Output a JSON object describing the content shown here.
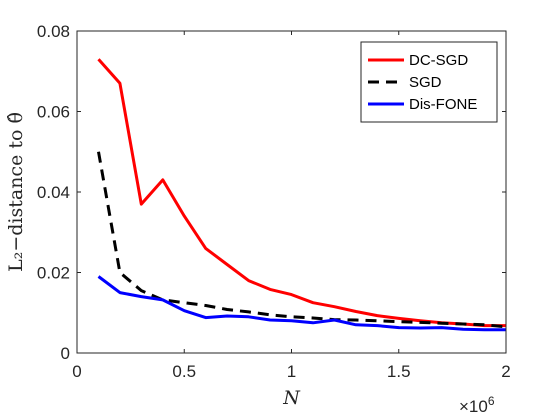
{
  "chart_data": {
    "type": "line",
    "title": "",
    "xlabel": "N",
    "ylabel": "L₂−distance to θ̂",
    "x_multiplier_label": "×10",
    "x_multiplier_exp": "6",
    "xlim": [
      0,
      2000000
    ],
    "ylim": [
      0,
      0.08
    ],
    "xticks": [
      0,
      500000,
      1000000,
      1500000,
      2000000
    ],
    "xtick_labels": [
      "0",
      "0.5",
      "1",
      "1.5",
      "2"
    ],
    "yticks": [
      0,
      0.02,
      0.04,
      0.06,
      0.08
    ],
    "ytick_labels": [
      "0",
      "0.02",
      "0.04",
      "0.06",
      "0.08"
    ],
    "grid": false,
    "legend_position": "top-right",
    "x": [
      100000,
      200000,
      300000,
      400000,
      500000,
      600000,
      700000,
      800000,
      900000,
      1000000,
      1100000,
      1200000,
      1300000,
      1400000,
      1500000,
      1600000,
      1700000,
      1800000,
      1900000,
      2000000
    ],
    "series": [
      {
        "name": "DC-SGD",
        "color": "#ff0000",
        "style": "solid",
        "values": [
          0.073,
          0.067,
          0.037,
          0.043,
          0.034,
          0.026,
          0.022,
          0.018,
          0.0158,
          0.0145,
          0.0125,
          0.0115,
          0.0103,
          0.0093,
          0.0086,
          0.008,
          0.0075,
          0.0072,
          0.0068,
          0.0068
        ]
      },
      {
        "name": "SGD",
        "color": "#000000",
        "style": "dashed",
        "values": [
          0.05,
          0.02,
          0.0155,
          0.0132,
          0.0125,
          0.0118,
          0.0108,
          0.0102,
          0.0095,
          0.009,
          0.0087,
          0.0083,
          0.0082,
          0.008,
          0.0078,
          0.0076,
          0.0074,
          0.0072,
          0.007,
          0.0065
        ]
      },
      {
        "name": "Dis-FONE",
        "color": "#0000ff",
        "style": "solid",
        "values": [
          0.019,
          0.015,
          0.014,
          0.0132,
          0.0105,
          0.0088,
          0.0092,
          0.009,
          0.0082,
          0.008,
          0.0075,
          0.0082,
          0.007,
          0.0068,
          0.0063,
          0.0062,
          0.0063,
          0.0059,
          0.0058,
          0.0058
        ]
      }
    ]
  }
}
